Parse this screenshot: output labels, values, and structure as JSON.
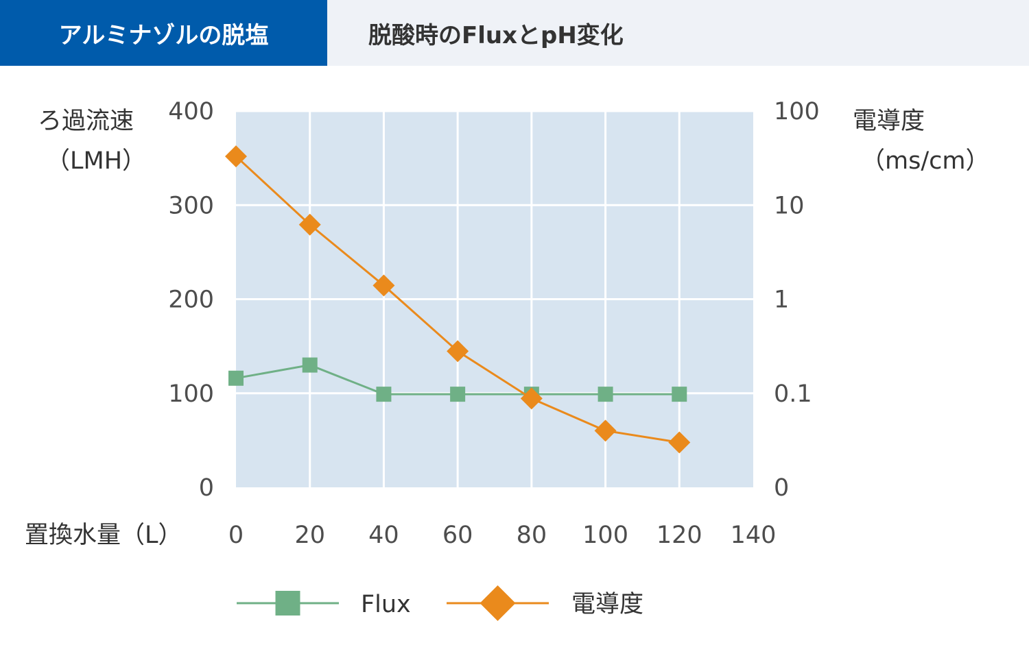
{
  "header": {
    "active_tab": "アルミナゾルの脱塩",
    "title": "脱酸時のFluxとpH変化"
  },
  "chart_data": {
    "type": "line",
    "x": [
      0,
      20,
      40,
      60,
      80,
      100,
      120
    ],
    "xlabel": "置換水量（L）",
    "x_ticks": [
      "0",
      "20",
      "40",
      "60",
      "80",
      "100",
      "120",
      "140"
    ],
    "xlim": [
      0,
      140
    ],
    "y_left": {
      "label_line1": "ろ過流速",
      "label_line2": "（LMH）",
      "ticks": [
        "0",
        "100",
        "200",
        "300",
        "400"
      ],
      "lim": [
        0,
        400
      ]
    },
    "y_right": {
      "label_line1": "電導度",
      "label_line2": "（ms/cm）",
      "ticks": [
        "0",
        "0.1",
        "1",
        "10",
        "100"
      ],
      "scale": "log"
    },
    "grid": true,
    "legend_position": "bottom",
    "series": [
      {
        "name": "Flux",
        "axis": "left",
        "marker": "square",
        "color": "#6fb086",
        "values": [
          116,
          130,
          99,
          99,
          99,
          99,
          99
        ]
      },
      {
        "name": "電導度",
        "axis": "right",
        "marker": "diamond",
        "color": "#ea8a1c",
        "values": [
          33,
          6.2,
          1.4,
          0.28,
          0.088,
          0.04,
          0.03
        ]
      }
    ],
    "plot_background": "#d7e4f0"
  }
}
